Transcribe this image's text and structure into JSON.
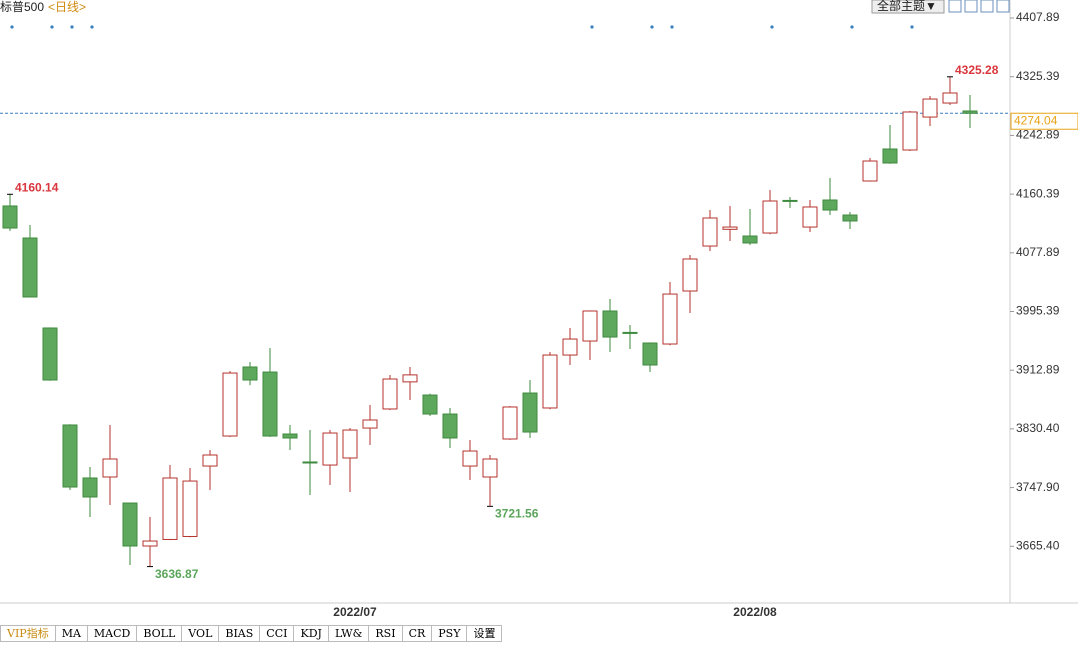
{
  "header": {
    "symbol": "标普500",
    "period": "<日线>",
    "theme_button": "全部主题▼"
  },
  "tabs": [
    "VIP指标",
    "MA",
    "MACD",
    "BOLL",
    "VOL",
    "BIAS",
    "CCI",
    "KDJ",
    "LW&",
    "RSI",
    "CR",
    "PSY",
    "设置"
  ],
  "chart_data": {
    "type": "candlestick",
    "categories": [
      null,
      null,
      null,
      null,
      null,
      null,
      null,
      null,
      null,
      null,
      null,
      null,
      null,
      null,
      null,
      null,
      null,
      "2022/07",
      null,
      null,
      null,
      null,
      null,
      null,
      null,
      null,
      null,
      null,
      null,
      null,
      null,
      null,
      null,
      null,
      null,
      null,
      null,
      "2022/08",
      null,
      null,
      null,
      null,
      null,
      null,
      null,
      null,
      null,
      null,
      null
    ],
    "open": [
      4143.7,
      4098.7,
      3972.2,
      3835.9,
      3761.4,
      3762.8,
      3726.2,
      3665.8,
      3675.0,
      3679.2,
      3778.2,
      3820.4,
      3917.4,
      3910.3,
      3823.2,
      3783.9,
      3779.6,
      3789.5,
      3831.6,
      3858.4,
      3896.5,
      3878.0,
      3851.3,
      3778.2,
      3762.8,
      3816.2,
      3880.8,
      3859.8,
      3934.2,
      3953.9,
      3996.1,
      3966.0,
      3951.1,
      3949.7,
      4024.2,
      4087.4,
      4110.9,
      4101.5,
      4105.7,
      4151.5,
      4114.1,
      4152.1,
      4131.0,
      4178.8,
      4223.8,
      4222.4,
      4268.7,
      4288.4,
      4277.2
    ],
    "high": [
      4160.14,
      4117.0,
      3973.0,
      3837.0,
      3776.8,
      3835.9,
      3727.0,
      3706.5,
      3779.6,
      3775.4,
      3800.7,
      3911.8,
      3924.4,
      3944.1,
      3835.9,
      3828.8,
      3828.8,
      3831.6,
      3864.0,
      3906.1,
      3917.4,
      3880.0,
      3859.7,
      3814.8,
      3793.7,
      3862.5,
      3899.1,
      3938.4,
      3972.2,
      3997.0,
      4012.9,
      3976.4,
      3952.0,
      4036.8,
      4074.8,
      4138.0,
      4143.7,
      4139.4,
      4166.2,
      4156.3,
      4152.1,
      4183.0,
      4135.2,
      4211.1,
      4257.5,
      4277.2,
      4298.3,
      4325.28,
      4299.7
    ],
    "low": [
      4108.5,
      4015.0,
      3898.0,
      3744.5,
      3706.5,
      3723.4,
      3639.1,
      3636.87,
      3674.0,
      3678.0,
      3744.5,
      3819.0,
      3892.0,
      3819.0,
      3800.7,
      3737.5,
      3751.5,
      3741.7,
      3807.7,
      3857.0,
      3871.0,
      3848.5,
      3803.5,
      3758.5,
      3721.56,
      3815.0,
      3817.6,
      3858.0,
      3920.2,
      3927.2,
      3938.4,
      3942.7,
      3910.3,
      3948.0,
      3993.3,
      4080.4,
      4094.5,
      4088.8,
      4104.0,
      4140.8,
      4107.1,
      4131.0,
      4111.3,
      4178.0,
      4203.0,
      4221.0,
      4256.1,
      4285.6,
      4253.3
    ],
    "close": [
      4112.7,
      4015.8,
      3899.1,
      3748.7,
      3734.7,
      3788.1,
      3665.8,
      3672.8,
      3761.4,
      3757.1,
      3793.7,
      3908.9,
      3899.1,
      3820.4,
      3817.6,
      3783.0,
      3824.6,
      3828.8,
      3842.9,
      3900.5,
      3906.3,
      3851.3,
      3817.6,
      3799.3,
      3788.1,
      3861.2,
      3826.0,
      3934.2,
      3956.7,
      3996.1,
      3959.5,
      3965.3,
      3920.2,
      4019.9,
      4069.2,
      4126.8,
      4114.1,
      4091.7,
      4150.7,
      4150.4,
      4142.3,
      4138.0,
      4122.6,
      4206.9,
      4204.1,
      4275.8,
      4294.0,
      4302.5,
      4274.04
    ],
    "up_color": "#b5332c",
    "down_color": "#5ea85e",
    "last_color": "#e8a317",
    "ylim": [
      3585.7,
      4433.2
    ],
    "yticks": [
      4407.89,
      4325.39,
      4242.89,
      4160.39,
      4077.89,
      3995.39,
      3912.89,
      {
        "value": 3830.4,
        "label": "3830.40"
      },
      {
        "value": 3747.9,
        "label": "3747.90"
      },
      {
        "value": 3665.4,
        "label": "3665.40"
      }
    ]
  }
}
